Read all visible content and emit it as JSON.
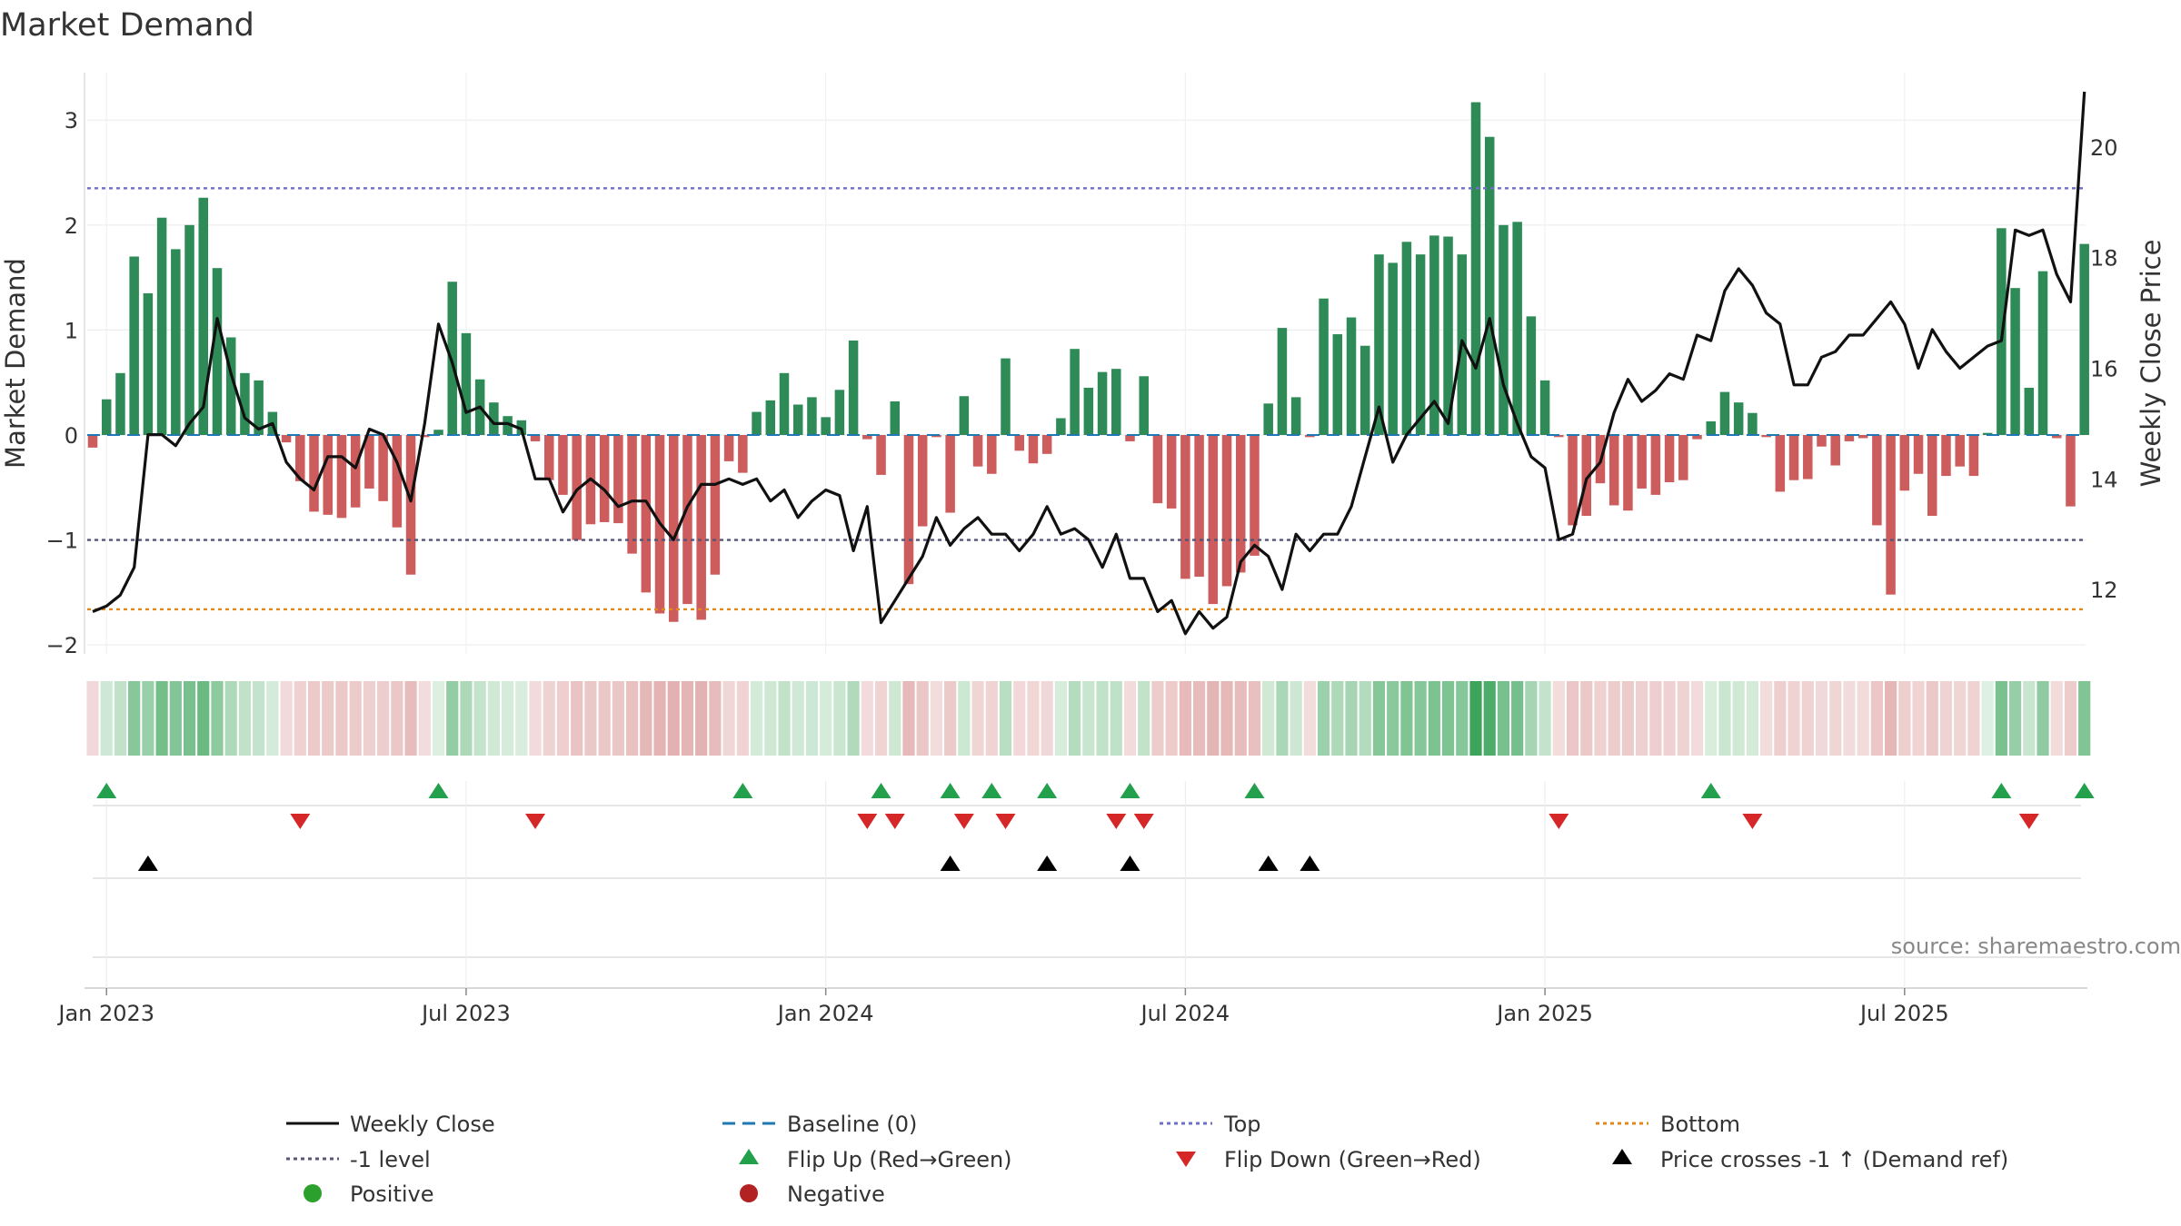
{
  "chart_data": {
    "type": "bar",
    "title": "Market Demand",
    "ylabel": "Market Demand",
    "y2label": "Weekly Close Price",
    "ylim": [
      -2.2,
      3.3
    ],
    "y2lim": [
      11,
      21
    ],
    "yticks": [
      "3",
      "2",
      "1",
      "0",
      "−1",
      "−2"
    ],
    "ytick_values": [
      3,
      2,
      1,
      0,
      -1,
      -2
    ],
    "y2ticks": [
      "20",
      "18",
      "16",
      "14",
      "12"
    ],
    "y2tick_values": [
      20,
      18,
      16,
      14,
      12
    ],
    "x_labels": [
      "Jan 2023",
      "Jul 2023",
      "Jan 2024",
      "Jul 2024",
      "Jan 2025",
      "Jul 2025"
    ],
    "x_label_weeks": [
      1,
      27,
      53,
      79,
      105,
      131
    ],
    "reference_levels": {
      "top": 2.35,
      "minus_one": -1.0,
      "bottom": -1.66,
      "baseline": 0
    },
    "series": [
      {
        "name": "Market Demand",
        "values": [
          -0.12,
          0.34,
          0.59,
          1.7,
          1.35,
          2.07,
          1.77,
          2.0,
          2.26,
          1.59,
          0.93,
          0.59,
          0.52,
          0.22,
          -0.07,
          -0.44,
          -0.73,
          -0.76,
          -0.79,
          -0.69,
          -0.51,
          -0.63,
          -0.88,
          -1.33,
          -0.02,
          0.05,
          1.46,
          0.97,
          0.53,
          0.31,
          0.18,
          0.14,
          -0.06,
          -0.43,
          -0.57,
          -1.0,
          -0.85,
          -0.83,
          -0.84,
          -1.13,
          -1.5,
          -1.7,
          -1.78,
          -1.61,
          -1.76,
          -1.33,
          -0.25,
          -0.36,
          0.22,
          0.33,
          0.59,
          0.29,
          0.36,
          0.17,
          0.43,
          0.9,
          -0.04,
          -0.38,
          0.32,
          -1.42,
          -0.87,
          -0.02,
          -0.74,
          0.37,
          -0.3,
          -0.37,
          0.73,
          -0.15,
          -0.27,
          -0.18,
          0.16,
          0.82,
          0.45,
          0.6,
          0.63,
          -0.06,
          0.56,
          -0.65,
          -0.7,
          -1.37,
          -1.35,
          -1.61,
          -1.44,
          -1.31,
          -1.15,
          0.3,
          1.02,
          0.36,
          -0.02,
          1.3,
          0.96,
          1.12,
          0.85,
          1.72,
          1.64,
          1.84,
          1.72,
          1.9,
          1.89,
          1.72,
          3.17,
          2.84,
          2.0,
          2.03,
          1.13,
          0.52,
          -0.02,
          -0.86,
          -0.77,
          -0.46,
          -0.67,
          -0.72,
          -0.51,
          -0.57,
          -0.45,
          -0.43,
          -0.04,
          0.13,
          0.41,
          0.31,
          0.21,
          -0.02,
          -0.54,
          -0.43,
          -0.42,
          -0.11,
          -0.29,
          -0.06,
          -0.03,
          -0.86,
          -1.52,
          -0.53,
          -0.37,
          -0.77,
          -0.39,
          -0.3,
          -0.39,
          0.02,
          1.97,
          1.4,
          0.45,
          1.56,
          -0.03,
          -0.68,
          1.82
        ]
      },
      {
        "name": "Weekly Close",
        "values": [
          11.6,
          11.7,
          11.9,
          12.4,
          14.8,
          14.8,
          14.6,
          15.0,
          15.3,
          16.9,
          15.9,
          15.1,
          14.9,
          15.0,
          14.3,
          14.0,
          13.8,
          14.4,
          14.4,
          14.2,
          14.9,
          14.8,
          14.3,
          13.6,
          15.0,
          16.8,
          16.1,
          15.2,
          15.3,
          15.0,
          15.0,
          14.9,
          14.0,
          14.0,
          13.4,
          13.8,
          14.0,
          13.8,
          13.5,
          13.6,
          13.6,
          13.2,
          12.9,
          13.5,
          13.9,
          13.9,
          14.0,
          13.9,
          14.0,
          13.6,
          13.8,
          13.3,
          13.6,
          13.8,
          13.7,
          12.7,
          13.5,
          11.4,
          11.8,
          12.2,
          12.6,
          13.3,
          12.8,
          13.1,
          13.3,
          13.0,
          13.0,
          12.7,
          13.0,
          13.5,
          13.0,
          13.1,
          12.9,
          12.4,
          13.0,
          12.2,
          12.2,
          11.6,
          11.8,
          11.2,
          11.6,
          11.3,
          11.5,
          12.5,
          12.8,
          12.6,
          12.0,
          13.0,
          12.7,
          13.0,
          13.0,
          13.5,
          14.4,
          15.3,
          14.3,
          14.8,
          15.1,
          15.4,
          15.0,
          16.5,
          16.0,
          16.9,
          15.7,
          15.0,
          14.4,
          14.2,
          12.9,
          13.0,
          14.0,
          14.3,
          15.2,
          15.8,
          15.4,
          15.6,
          15.9,
          15.8,
          16.6,
          16.5,
          17.4,
          17.8,
          17.5,
          17.0,
          16.8,
          15.7,
          15.7,
          16.2,
          16.3,
          16.6,
          16.6,
          16.9,
          17.2,
          16.8,
          16.0,
          16.7,
          16.3,
          16.0,
          16.2,
          16.4,
          16.5,
          18.5,
          18.4,
          18.5,
          17.7,
          17.2,
          21.0
        ]
      }
    ],
    "heat_strip": "demand-colored week cells (green = positive, red = negative, intensity = magnitude)",
    "flip_up_weeks": [
      1,
      25,
      47,
      57,
      62,
      65,
      69,
      75,
      84,
      117,
      138,
      144
    ],
    "flip_down_weeks": [
      15,
      32,
      56,
      58,
      63,
      66,
      74,
      76,
      106,
      120,
      140
    ],
    "price_cross_weeks": [
      4,
      62,
      69,
      75,
      85,
      88
    ]
  },
  "source": "source: sharemaestro.com",
  "legend": {
    "weekly_close": "Weekly Close",
    "baseline": "Baseline (0)",
    "top": "Top",
    "bottom": "Bottom",
    "minus_one": "-1 level",
    "flip_up": "Flip Up (Red→Green)",
    "flip_down": "Flip Down (Green→Red)",
    "price_cross": "Price crosses -1 ↑ (Demand ref)",
    "positive": "Positive",
    "negative": "Negative"
  },
  "colors": {
    "positive": "#2e8b57",
    "negative": "#cd5c5c",
    "close": "#111111",
    "baseline": "#1f77b4",
    "top": "#6f6fc8",
    "minus_one": "#555577",
    "bottom": "#e08a1e",
    "flip_up": "#22a04b",
    "flip_down": "#d62728",
    "cross": "#000000",
    "pos_dot": "#2ca02c",
    "neg_dot": "#b22222"
  }
}
